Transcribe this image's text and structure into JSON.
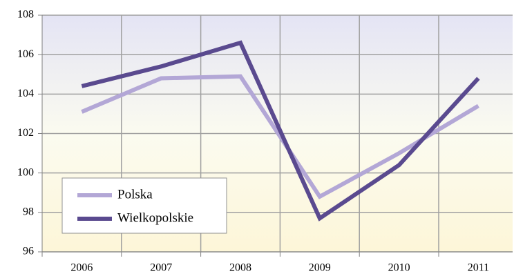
{
  "chart_data": {
    "type": "line",
    "categories": [
      "2006",
      "2007",
      "2008",
      "2009",
      "2010",
      "2011"
    ],
    "series": [
      {
        "name": "Polska",
        "color": "#b3a7d6",
        "values": [
          103.1,
          104.8,
          104.9,
          98.8,
          101.0,
          103.4
        ]
      },
      {
        "name": "Wielkopolskie",
        "color": "#5a4a8f",
        "values": [
          104.4,
          105.4,
          106.6,
          97.7,
          100.4,
          104.8
        ]
      }
    ],
    "ylim": [
      96,
      108
    ],
    "yticks": [
      96,
      98,
      100,
      102,
      104,
      106,
      108
    ],
    "grid": true,
    "legend": "lower left"
  }
}
